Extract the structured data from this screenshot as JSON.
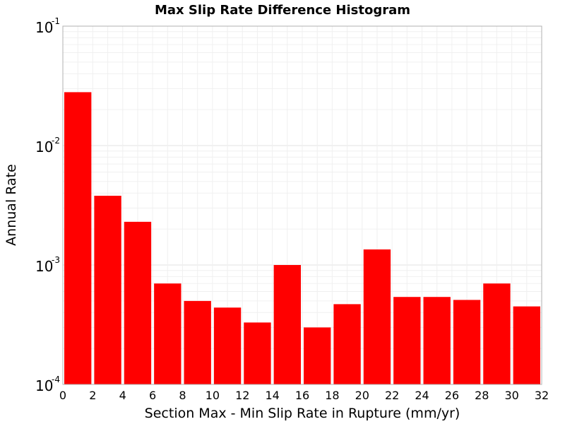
{
  "chart_data": {
    "type": "bar",
    "title": "Max Slip Rate Difference Histogram",
    "xlabel": "Section Max - Min Slip Rate in Rupture (mm/yr)",
    "ylabel": "Annual Rate",
    "xlim": [
      0,
      32
    ],
    "ylim": [
      0.0001,
      0.1
    ],
    "yscale": "log",
    "bin_width": 2,
    "x_ticks": [
      "0",
      "2",
      "4",
      "6",
      "8",
      "10",
      "12",
      "14",
      "16",
      "18",
      "20",
      "22",
      "24",
      "26",
      "28",
      "30",
      "32"
    ],
    "y_ticks": [
      {
        "base": "10",
        "exp": "-4"
      },
      {
        "base": "10",
        "exp": "-3"
      },
      {
        "base": "10",
        "exp": "-2"
      },
      {
        "base": "10",
        "exp": "-1"
      }
    ],
    "bins": [
      {
        "x": 0,
        "y": 0.028
      },
      {
        "x": 2,
        "y": 0.0038
      },
      {
        "x": 4,
        "y": 0.0023
      },
      {
        "x": 6,
        "y": 0.0007
      },
      {
        "x": 8,
        "y": 0.0005
      },
      {
        "x": 10,
        "y": 0.00044
      },
      {
        "x": 12,
        "y": 0.00033
      },
      {
        "x": 14,
        "y": 0.001
      },
      {
        "x": 16,
        "y": 0.0003
      },
      {
        "x": 18,
        "y": 0.00047
      },
      {
        "x": 20,
        "y": 0.00135
      },
      {
        "x": 22,
        "y": 0.00054
      },
      {
        "x": 24,
        "y": 0.00054
      },
      {
        "x": 26,
        "y": 0.00051
      },
      {
        "x": 28,
        "y": 0.0007
      },
      {
        "x": 30,
        "y": 0.00045
      }
    ],
    "bar_color": "#ff0000",
    "grid": true,
    "legend": "none"
  }
}
